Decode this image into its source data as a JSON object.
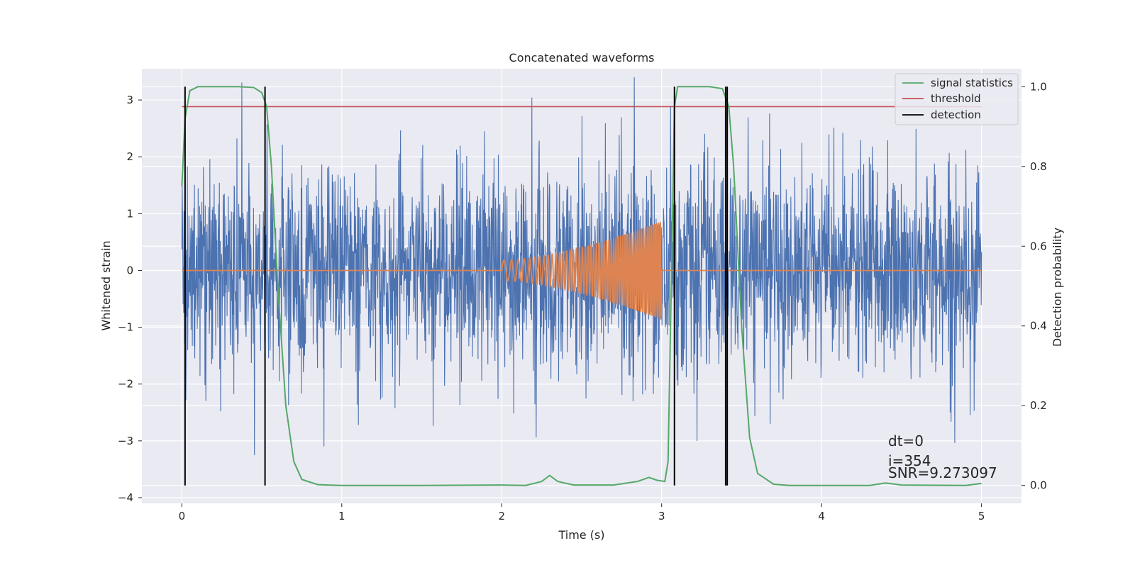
{
  "chart_data": {
    "type": "line",
    "title": "Concatenated waveforms",
    "xlabel": "Time (s)",
    "ylabel": "Whitened strain",
    "y2label": "Detection probability",
    "xlim": [
      -0.25,
      5.25
    ],
    "ylim": [
      -4.1,
      3.55
    ],
    "y2lim": [
      -0.045,
      1.045
    ],
    "xticks": [
      0,
      1,
      2,
      3,
      4,
      5
    ],
    "yticks": [
      -4,
      -3,
      -2,
      -1,
      0,
      1,
      2,
      3
    ],
    "y2ticks": [
      0.0,
      0.2,
      0.4,
      0.6,
      0.8,
      1.0
    ],
    "grid": true,
    "legend_position": "top-right",
    "colors": {
      "strain": "#4c72b0",
      "template": "#dd8452",
      "signal_statistics": "#55a868",
      "threshold": "#c44e52",
      "detection": "#000000",
      "background": "#eaeaf2",
      "grid": "#ffffff"
    },
    "series": [
      {
        "name": "signal statistics",
        "axis": "right",
        "points": [
          [
            0.0,
            0.75
          ],
          [
            0.02,
            0.92
          ],
          [
            0.05,
            0.99
          ],
          [
            0.1,
            1.0
          ],
          [
            0.2,
            1.0
          ],
          [
            0.35,
            1.0
          ],
          [
            0.45,
            0.998
          ],
          [
            0.5,
            0.985
          ],
          [
            0.53,
            0.95
          ],
          [
            0.56,
            0.8
          ],
          [
            0.6,
            0.5
          ],
          [
            0.65,
            0.2
          ],
          [
            0.7,
            0.06
          ],
          [
            0.75,
            0.015
          ],
          [
            0.85,
            0.002
          ],
          [
            1.0,
            0.0
          ],
          [
            1.5,
            0.0
          ],
          [
            2.0,
            0.001
          ],
          [
            2.15,
            0.0
          ],
          [
            2.25,
            0.01
          ],
          [
            2.3,
            0.025
          ],
          [
            2.35,
            0.01
          ],
          [
            2.45,
            0.001
          ],
          [
            2.7,
            0.001
          ],
          [
            2.85,
            0.01
          ],
          [
            2.92,
            0.02
          ],
          [
            2.97,
            0.013
          ],
          [
            3.02,
            0.01
          ],
          [
            3.04,
            0.06
          ],
          [
            3.06,
            0.5
          ],
          [
            3.08,
            0.95
          ],
          [
            3.1,
            1.0
          ],
          [
            3.2,
            1.0
          ],
          [
            3.3,
            1.0
          ],
          [
            3.38,
            0.995
          ],
          [
            3.42,
            0.95
          ],
          [
            3.45,
            0.8
          ],
          [
            3.5,
            0.4
          ],
          [
            3.55,
            0.12
          ],
          [
            3.6,
            0.03
          ],
          [
            3.7,
            0.003
          ],
          [
            3.8,
            0.0
          ],
          [
            4.3,
            0.0
          ],
          [
            4.4,
            0.006
          ],
          [
            4.5,
            0.001
          ],
          [
            4.9,
            0.0
          ],
          [
            5.0,
            0.005
          ]
        ]
      },
      {
        "name": "threshold",
        "axis": "right",
        "x": [
          0.0,
          5.0
        ],
        "y": [
          0.95,
          0.95
        ]
      },
      {
        "name": "detection",
        "axis": "right",
        "x_positions": [
          0.02,
          0.52,
          3.08,
          3.4,
          3.41
        ],
        "y_range": [
          0.0,
          1.0
        ]
      }
    ],
    "noise_x_range": [
      0.0,
      5.0
    ],
    "noise_sigma": 0.9,
    "chirp_x_range": [
      2.0,
      3.0
    ],
    "chirp_amp_range": [
      0.18,
      0.87
    ],
    "annotations": [
      "dt=0",
      "i=354",
      "SNR=9.273097"
    ]
  }
}
